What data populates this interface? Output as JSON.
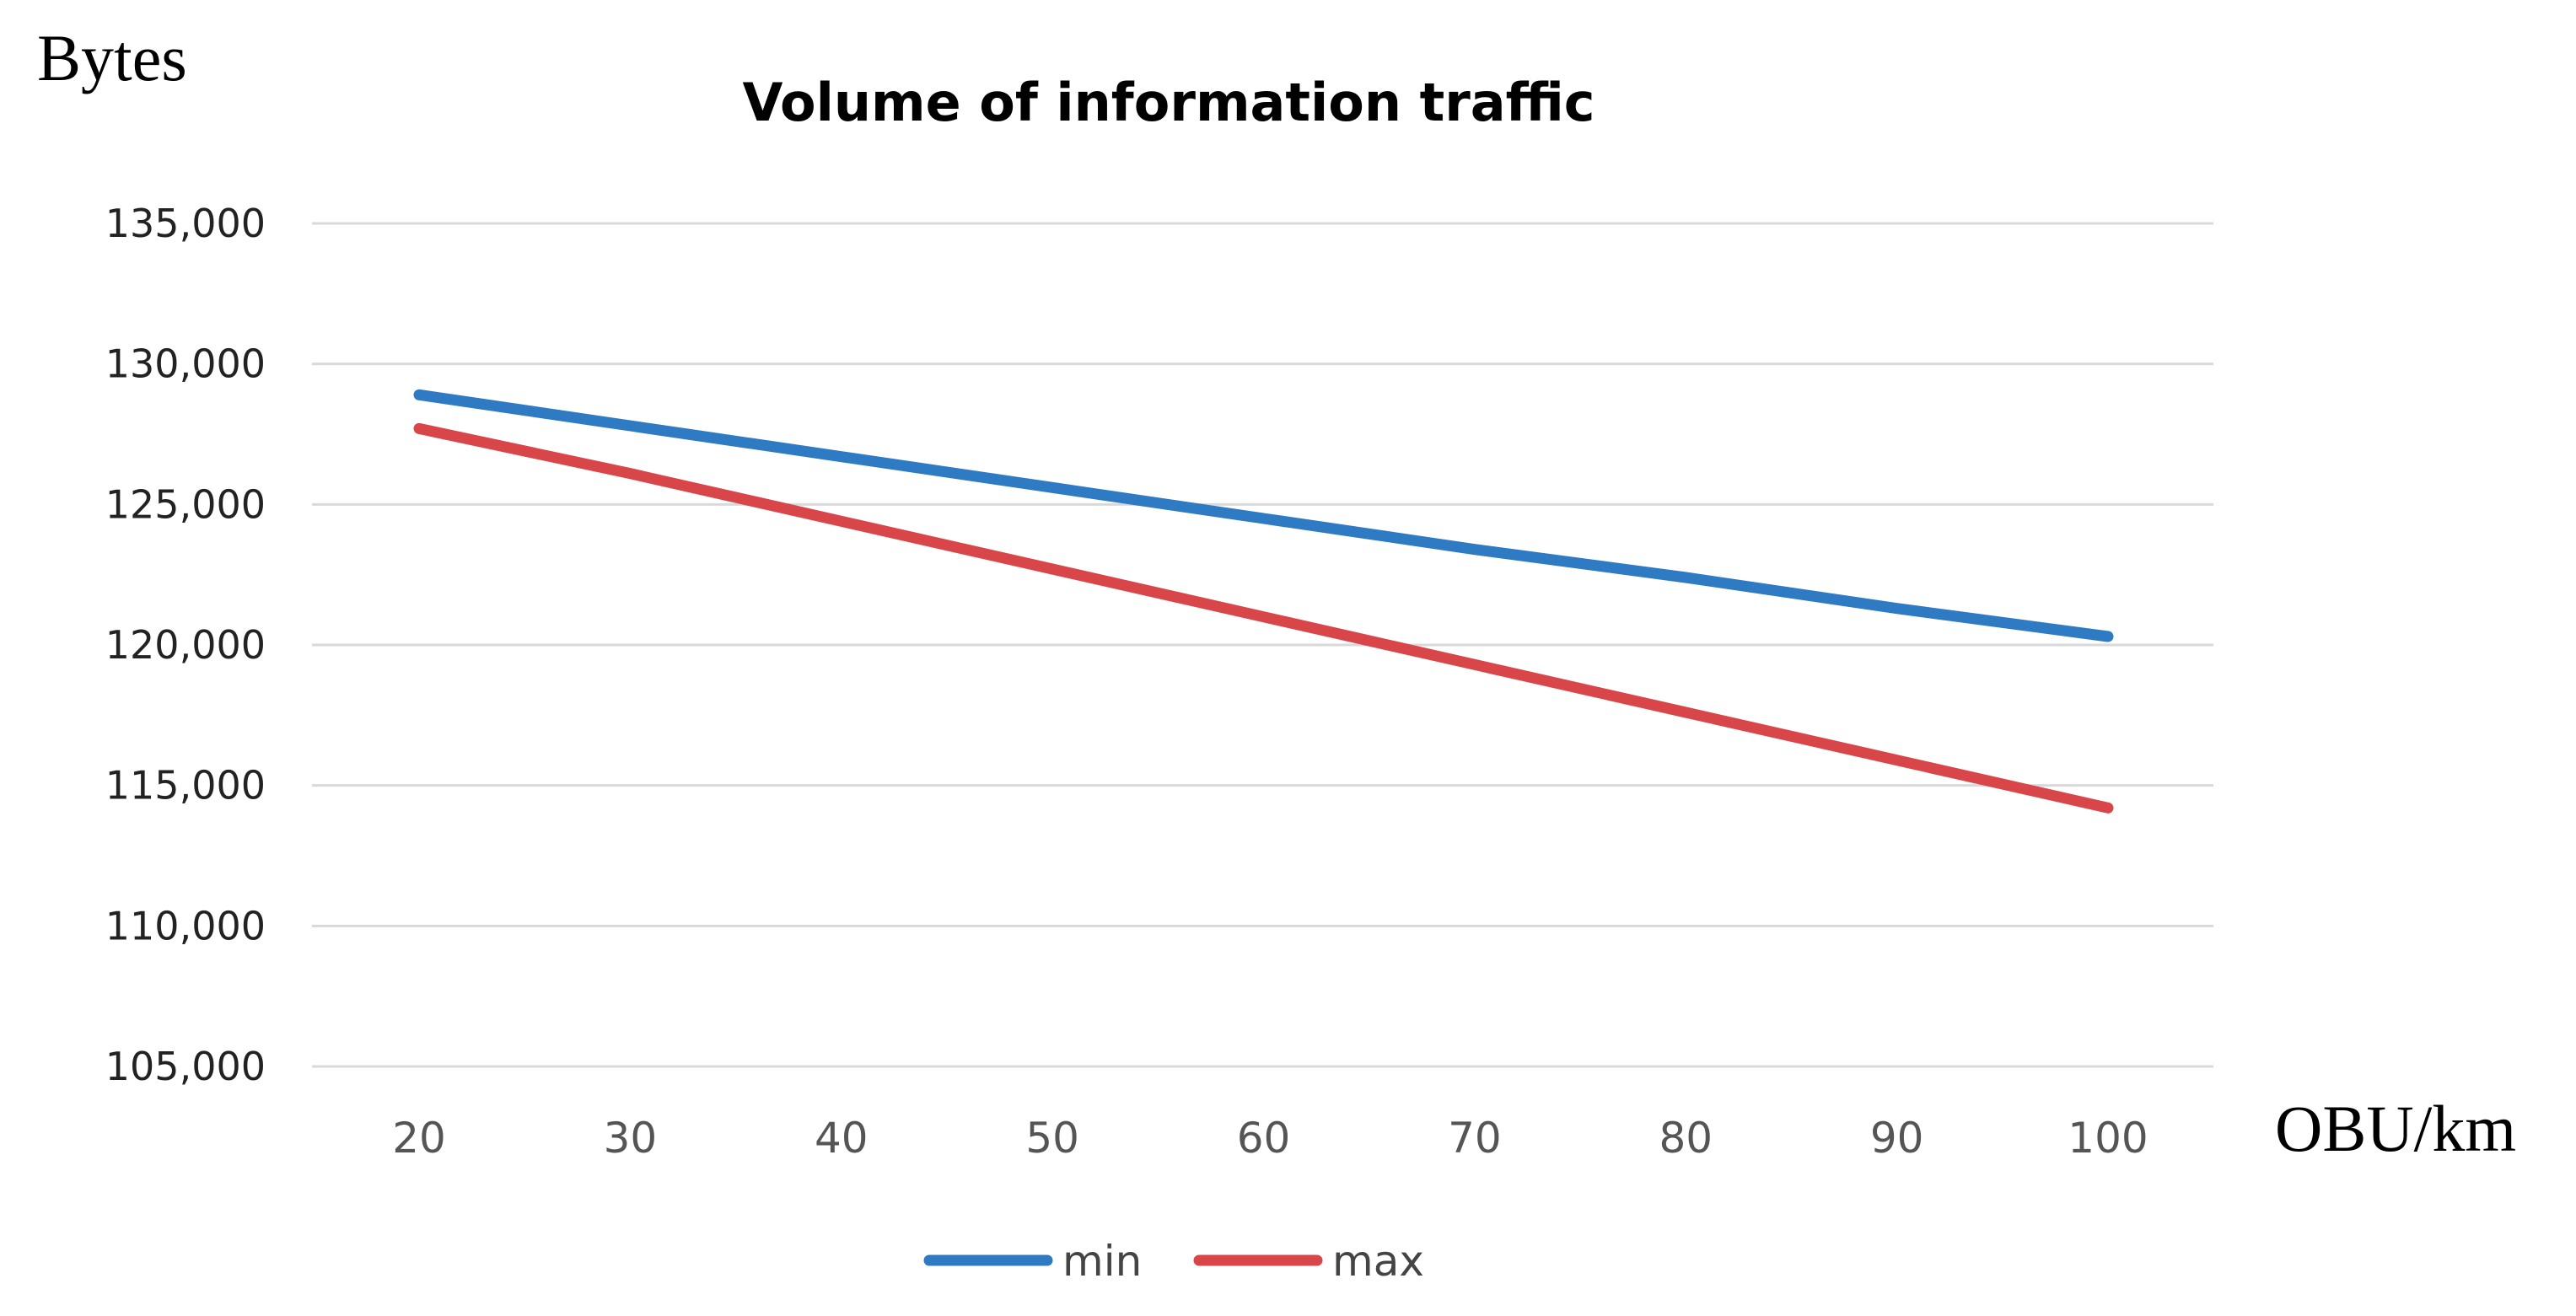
{
  "chart_data": {
    "type": "line",
    "title": "Volume of information traffic",
    "ylabel": "Bytes",
    "xlabel": "OBU/km",
    "categories": [
      "20",
      "30",
      "40",
      "50",
      "60",
      "70",
      "80",
      "90",
      "100"
    ],
    "x": [
      20,
      30,
      40,
      50,
      60,
      70,
      80,
      90,
      100
    ],
    "ylim": [
      105000,
      135000
    ],
    "yticks": [
      105000,
      110000,
      115000,
      120000,
      125000,
      130000,
      135000
    ],
    "ytick_labels": [
      "105,000",
      "110,000",
      "115,000",
      "120,000",
      "125,000",
      "130,000",
      "135,000"
    ],
    "grid": true,
    "legend_position": "bottom",
    "series": [
      {
        "name": "min",
        "color": "#2e7bc4",
        "values": [
          128900,
          127800,
          126700,
          125600,
          124500,
          123400,
          122400,
          121300,
          120300
        ]
      },
      {
        "name": "max",
        "color": "#d9464a",
        "values": [
          127700,
          126100,
          124400,
          122700,
          121000,
          119300,
          117600,
          115900,
          114200
        ]
      }
    ]
  }
}
